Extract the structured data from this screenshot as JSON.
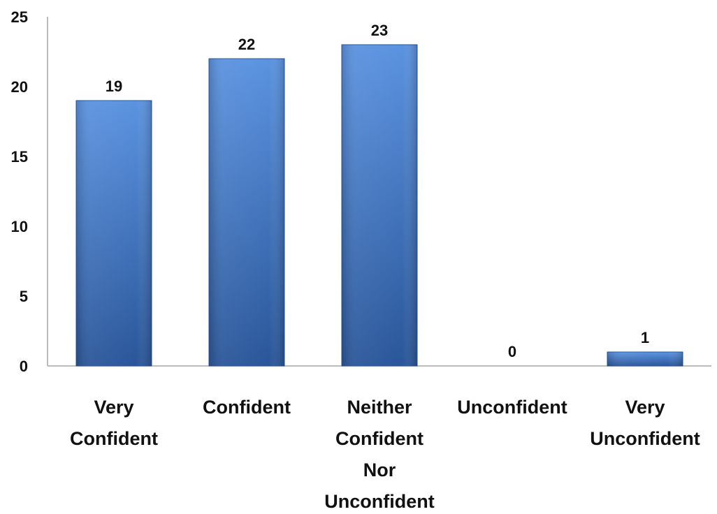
{
  "chart_data": {
    "type": "bar",
    "title": "",
    "xlabel": "",
    "ylabel": "",
    "categories": [
      [
        "Very",
        "Confident"
      ],
      [
        "Confident"
      ],
      [
        "Neither",
        "Confident",
        "Nor",
        "Unconfident"
      ],
      [
        "Unconfident"
      ],
      [
        "Very",
        "Unconfident"
      ]
    ],
    "values": [
      19,
      22,
      23,
      0,
      1
    ],
    "data_labels": [
      "19",
      "22",
      "23",
      "0",
      "1"
    ],
    "ylim": [
      0,
      25
    ],
    "yticks": [
      0,
      5,
      10,
      15,
      20,
      25
    ],
    "grid": false,
    "legend": "none",
    "bar_color": "#3a72c4",
    "bar_color_light": "#5b93e0",
    "bar_color_dark": "#2a5699"
  }
}
